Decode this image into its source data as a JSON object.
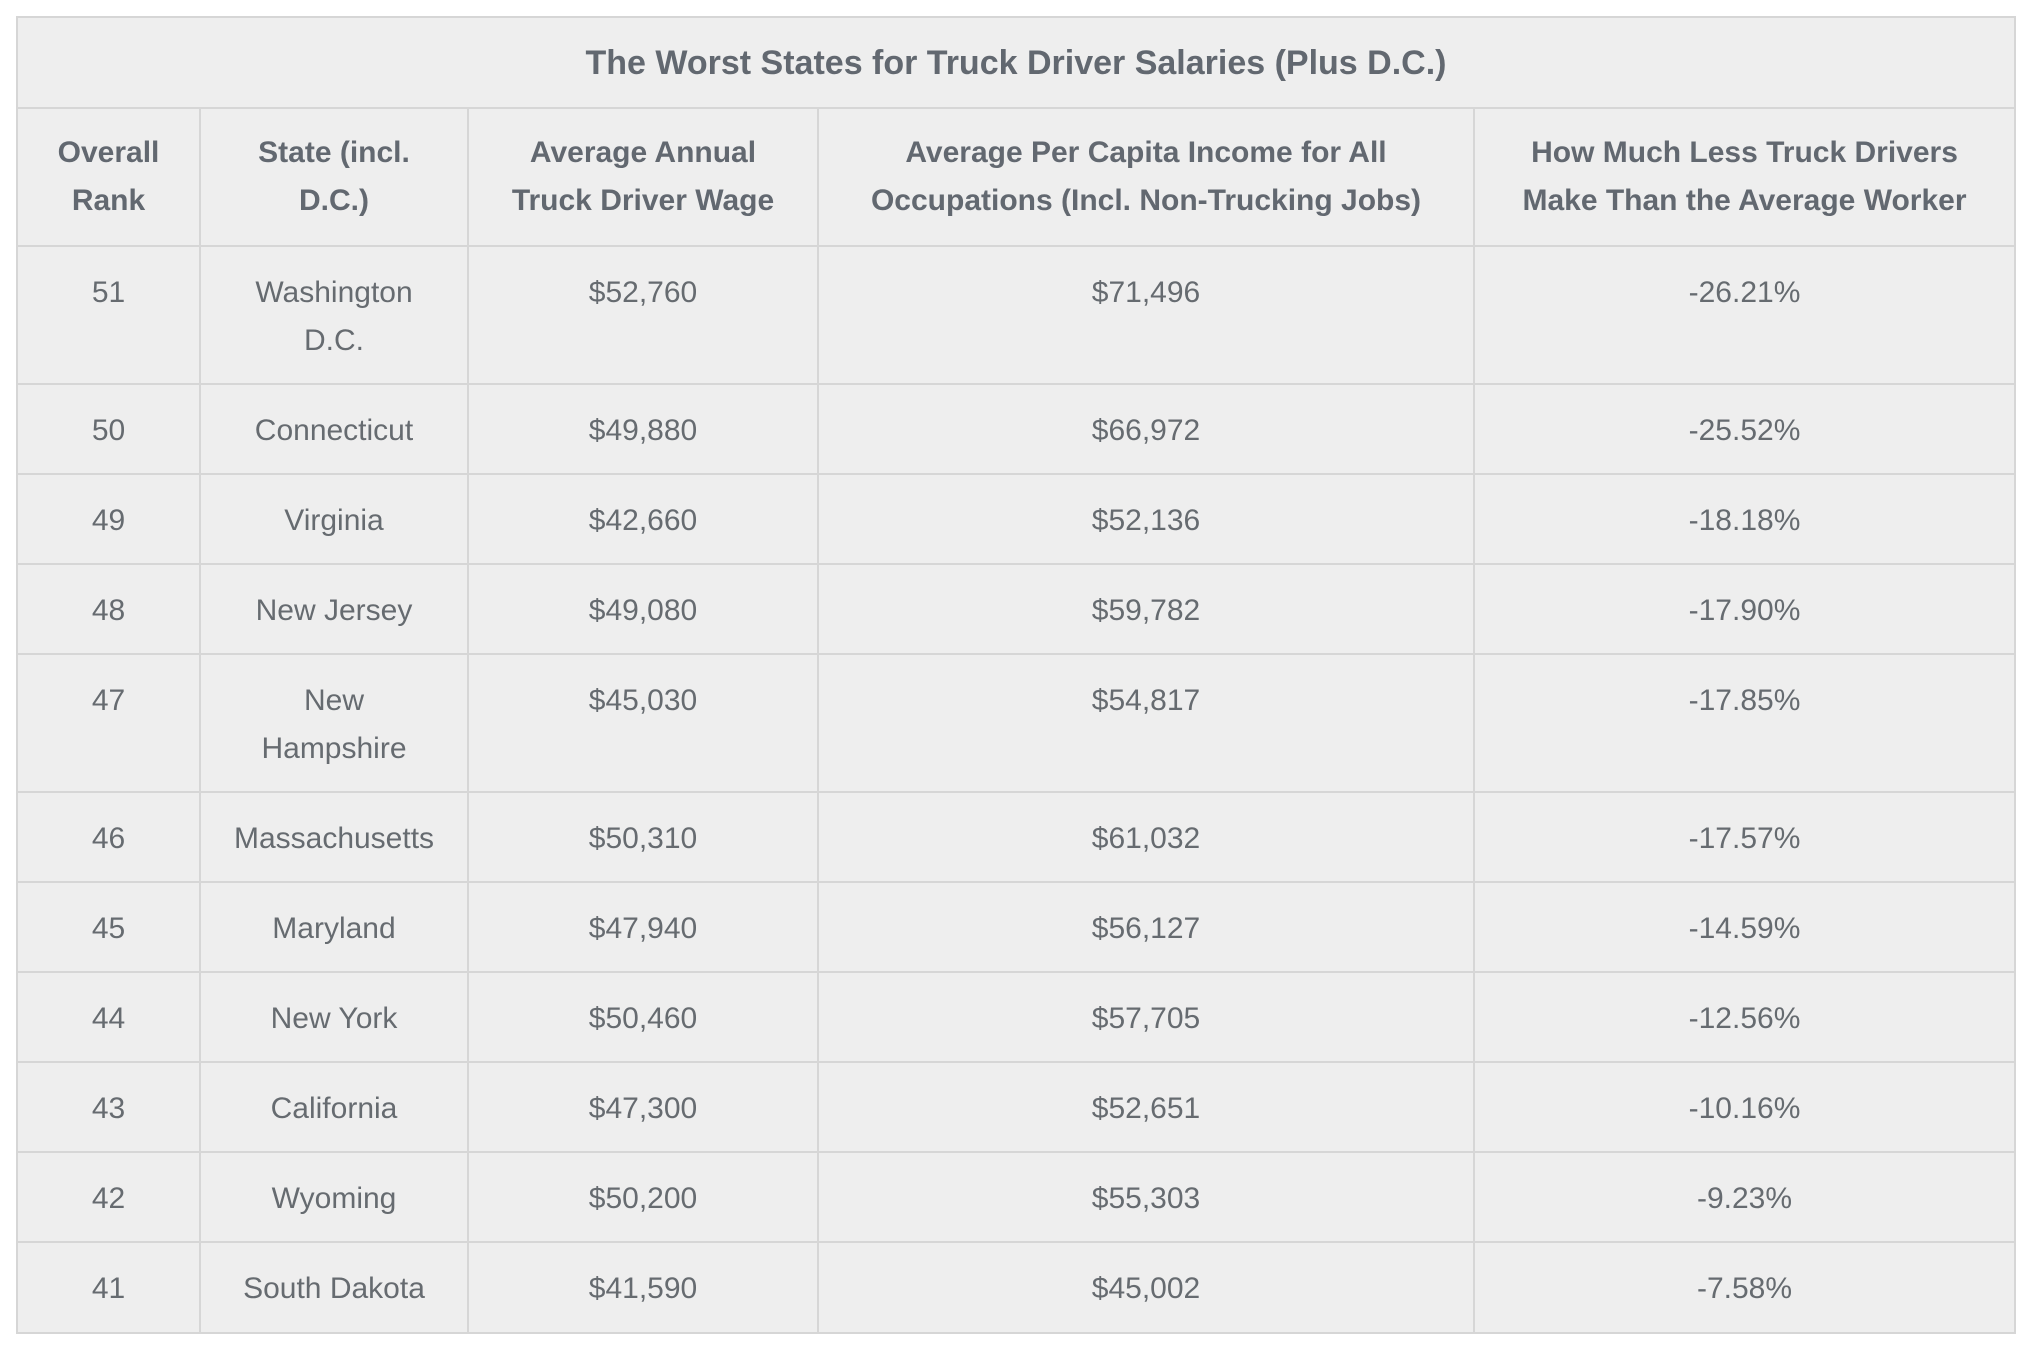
{
  "table": {
    "title": "The Worst States for Truck Driver Salaries (Plus D.C.)",
    "headers": [
      "Overall Rank",
      "State (incl. D.C.)",
      "Average Annual Truck Driver Wage",
      "Average Per Capita Income for All Occupations (Incl. Non-Trucking Jobs)",
      "How Much Less Truck Drivers Make Than the Average Worker"
    ],
    "rows": [
      [
        "51",
        "Washington D.C.",
        "$52,760",
        "$71,496",
        "-26.21%"
      ],
      [
        "50",
        "Connecticut",
        "$49,880",
        "$66,972",
        "-25.52%"
      ],
      [
        "49",
        "Virginia",
        "$42,660",
        "$52,136",
        "-18.18%"
      ],
      [
        "48",
        "New Jersey",
        "$49,080",
        "$59,782",
        "-17.90%"
      ],
      [
        "47",
        "New Hampshire",
        "$45,030",
        "$54,817",
        "-17.85%"
      ],
      [
        "46",
        "Massachusetts",
        "$50,310",
        "$61,032",
        "-17.57%"
      ],
      [
        "45",
        "Maryland",
        "$47,940",
        "$56,127",
        "-14.59%"
      ],
      [
        "44",
        "New York",
        "$50,460",
        "$57,705",
        "-12.56%"
      ],
      [
        "43",
        "California",
        "$47,300",
        "$52,651",
        "-10.16%"
      ],
      [
        "42",
        "Wyoming",
        "$50,200",
        "$55,303",
        "-9.23%"
      ],
      [
        "41",
        "South Dakota",
        "$41,590",
        "$45,002",
        "-7.58%"
      ]
    ]
  }
}
